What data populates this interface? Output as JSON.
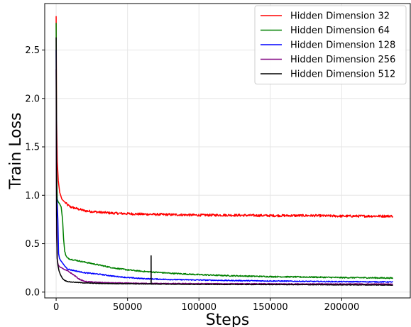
{
  "chart_data": {
    "type": "line",
    "title": "",
    "xlabel": "Steps",
    "ylabel": "Train Loss",
    "xlim": [
      -8000,
      248000
    ],
    "ylim": [
      -0.06,
      2.98
    ],
    "xticks": [
      0,
      50000,
      100000,
      150000,
      200000
    ],
    "xtick_labels": [
      "0",
      "50000",
      "100000",
      "150000",
      "200000"
    ],
    "yticks": [
      0.0,
      0.5,
      1.0,
      1.5,
      2.0,
      2.5
    ],
    "ytick_labels": [
      "0.0",
      "0.5",
      "1.0",
      "1.5",
      "2.0",
      "2.5"
    ],
    "grid": true,
    "legend_position": "top-right",
    "series": [
      {
        "name": "Hidden Dimension 32",
        "color": "#ff0000",
        "noise": 0.012,
        "x": [
          0,
          300,
          800,
          1500,
          2500,
          4000,
          6000,
          8000,
          10000,
          15000,
          20000,
          30000,
          40000,
          50000,
          60000,
          80000,
          100000,
          120000,
          150000,
          180000,
          200000,
          220000,
          236000
        ],
        "y": [
          2.85,
          1.8,
          1.35,
          1.15,
          1.03,
          0.96,
          0.93,
          0.9,
          0.88,
          0.86,
          0.84,
          0.825,
          0.815,
          0.81,
          0.805,
          0.8,
          0.795,
          0.795,
          0.79,
          0.79,
          0.785,
          0.785,
          0.785
        ]
      },
      {
        "name": "Hidden Dimension 64",
        "color": "#008000",
        "noise": 0.006,
        "x": [
          0,
          300,
          800,
          1500,
          2500,
          3500,
          4500,
          5200,
          6000,
          7000,
          8000,
          10000,
          15000,
          20000,
          30000,
          40000,
          50000,
          60000,
          80000,
          100000,
          120000,
          150000,
          180000,
          200000,
          220000,
          236000
        ],
        "y": [
          2.78,
          1.3,
          0.96,
          0.93,
          0.91,
          0.88,
          0.75,
          0.55,
          0.42,
          0.37,
          0.35,
          0.34,
          0.325,
          0.31,
          0.28,
          0.25,
          0.23,
          0.215,
          0.195,
          0.18,
          0.17,
          0.16,
          0.155,
          0.15,
          0.148,
          0.145
        ]
      },
      {
        "name": "Hidden Dimension 128",
        "color": "#0000ff",
        "noise": 0.005,
        "x": [
          0,
          300,
          800,
          1200,
          1700,
          2300,
          3000,
          4500,
          6000,
          8000,
          10000,
          15000,
          20000,
          30000,
          40000,
          50000,
          60000,
          80000,
          100000,
          120000,
          150000,
          180000,
          200000,
          236000
        ],
        "y": [
          2.5,
          1.0,
          0.9,
          0.75,
          0.4,
          0.35,
          0.33,
          0.3,
          0.27,
          0.24,
          0.23,
          0.215,
          0.2,
          0.185,
          0.165,
          0.15,
          0.14,
          0.13,
          0.125,
          0.12,
          0.115,
          0.11,
          0.108,
          0.105
        ]
      },
      {
        "name": "Hidden Dimension 256",
        "color": "#800080",
        "noise": 0.004,
        "x": [
          0,
          300,
          800,
          1500,
          2500,
          4000,
          6000,
          8000,
          10000,
          13000,
          16000,
          20000,
          30000,
          40000,
          60000,
          80000,
          100000,
          150000,
          200000,
          236000
        ],
        "y": [
          2.3,
          0.6,
          0.33,
          0.28,
          0.26,
          0.25,
          0.23,
          0.22,
          0.2,
          0.17,
          0.135,
          0.11,
          0.1,
          0.095,
          0.09,
          0.088,
          0.087,
          0.085,
          0.084,
          0.083
        ]
      },
      {
        "name": "Hidden Dimension 512",
        "color": "#000000",
        "noise": 0.003,
        "spike": {
          "x": 66500,
          "y": 0.375
        },
        "x": [
          0,
          300,
          700,
          1200,
          2000,
          3000,
          4500,
          6000,
          8000,
          10000,
          15000,
          20000,
          30000,
          40000,
          60000,
          80000,
          100000,
          150000,
          200000,
          236000
        ],
        "y": [
          2.63,
          0.8,
          0.35,
          0.28,
          0.22,
          0.18,
          0.14,
          0.12,
          0.11,
          0.105,
          0.1,
          0.095,
          0.09,
          0.088,
          0.085,
          0.082,
          0.08,
          0.078,
          0.075,
          0.073
        ]
      }
    ]
  }
}
